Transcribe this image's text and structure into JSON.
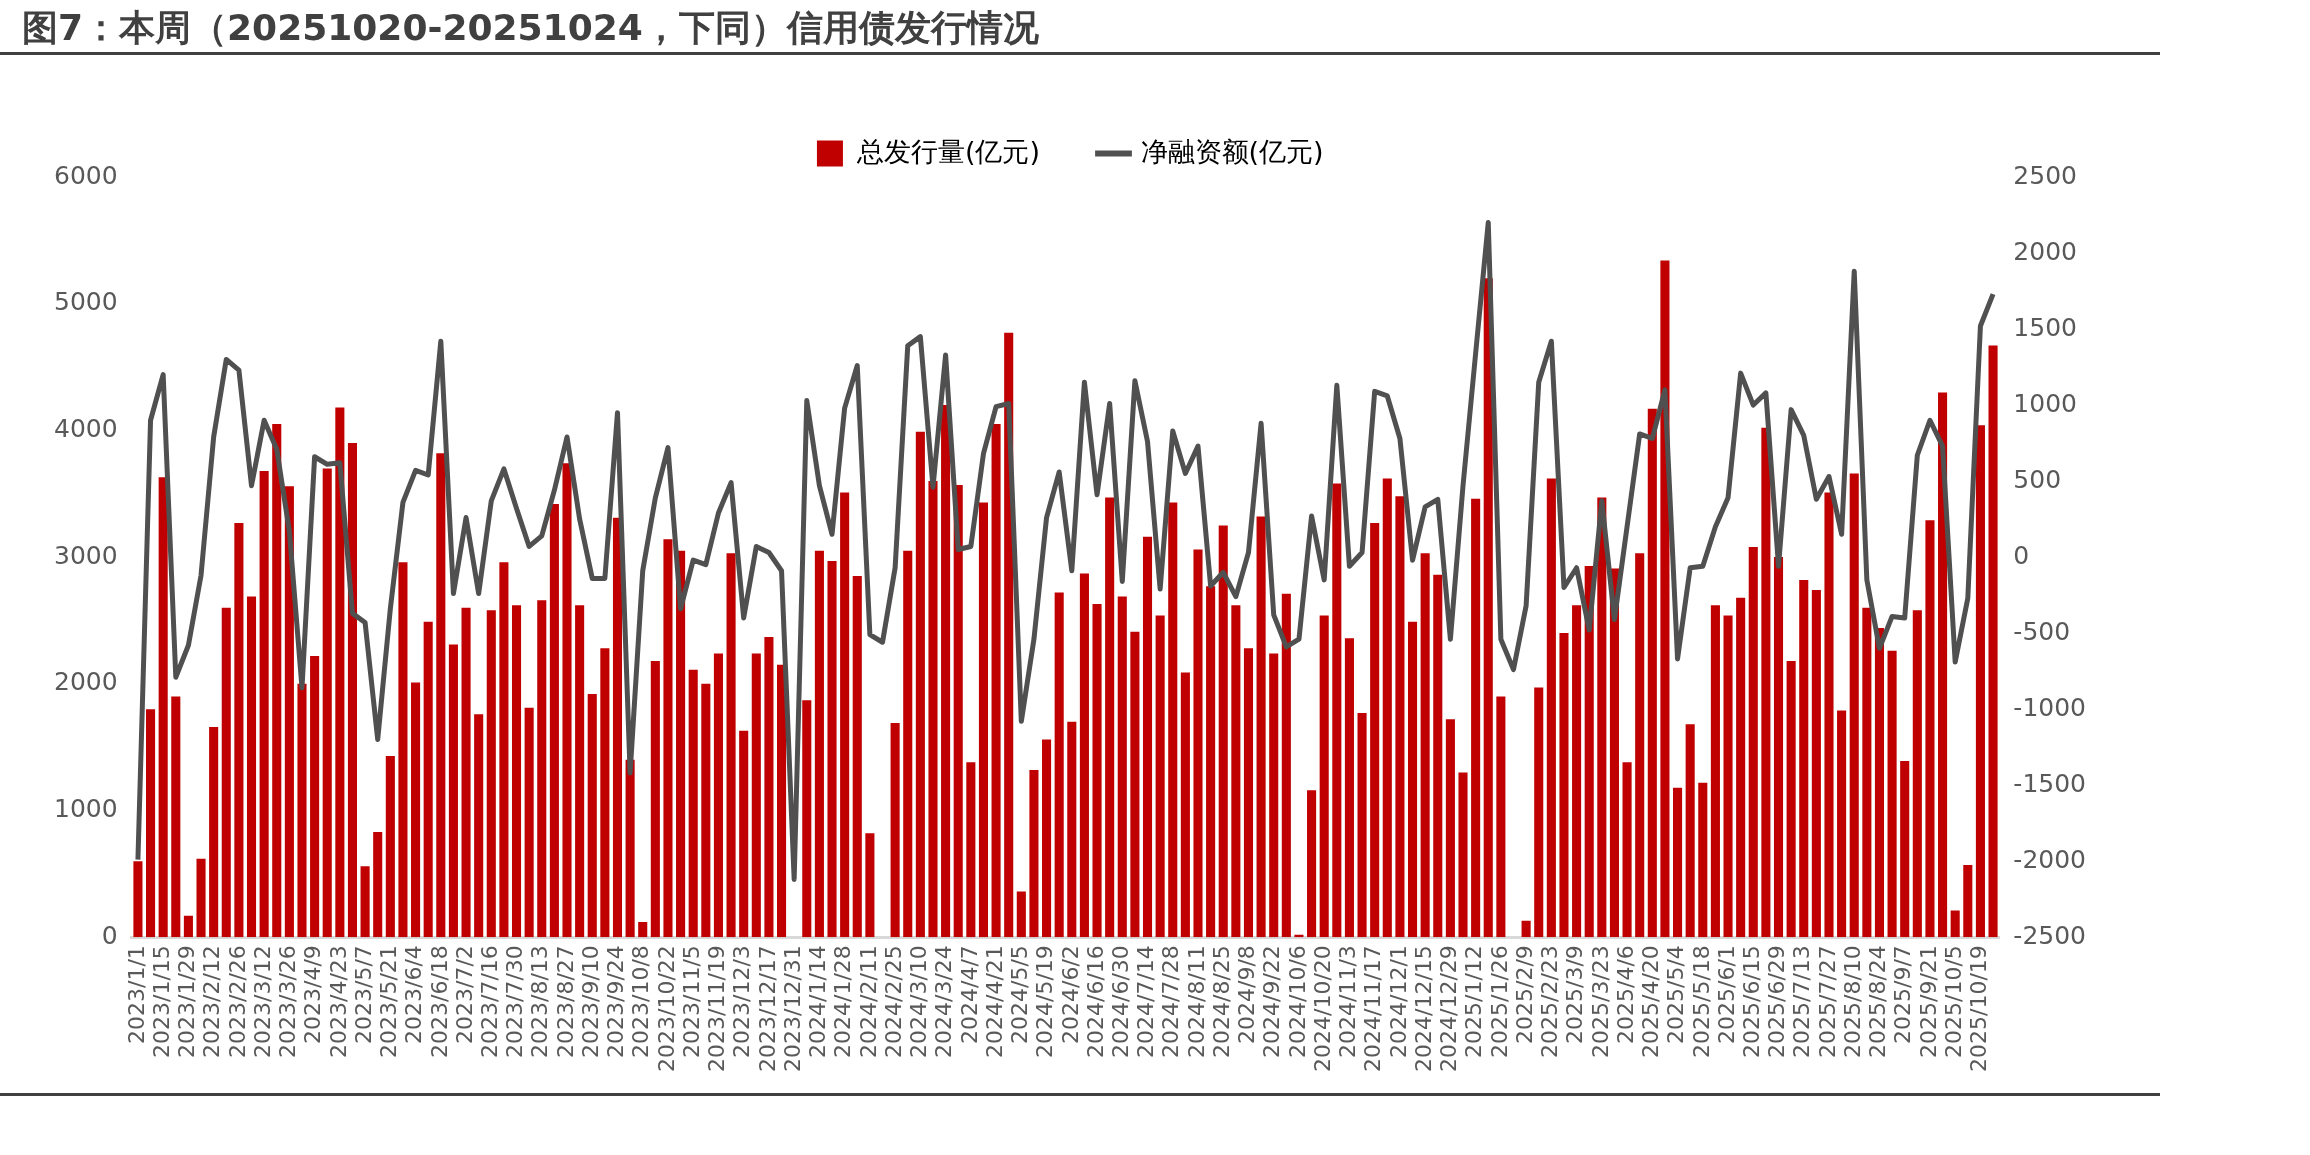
{
  "chart_data": {
    "type": "bar",
    "title": "图7：本周（20251020-20251024，下同）信用债发行情况",
    "categories": [
      "2023/1/1",
      null,
      "2023/1/15",
      null,
      "2023/1/29",
      null,
      "2023/2/12",
      null,
      "2023/2/26",
      null,
      "2023/3/12",
      null,
      "2023/3/26",
      null,
      "2023/4/9",
      null,
      "2023/4/23",
      null,
      "2023/5/7",
      null,
      "2023/5/21",
      null,
      "2023/6/4",
      null,
      "2023/6/18",
      null,
      "2023/7/2",
      null,
      "2023/7/16",
      null,
      "2023/7/30",
      null,
      "2023/8/13",
      null,
      "2023/8/27",
      null,
      "2023/9/10",
      null,
      "2023/9/24",
      null,
      "2023/10/8",
      null,
      "2023/10/22",
      null,
      "2023/11/5",
      null,
      "2023/11/19",
      null,
      "2023/12/3",
      null,
      "2023/12/17",
      null,
      "2023/12/31",
      null,
      "2024/1/14",
      null,
      "2024/1/28",
      null,
      "2024/2/11",
      null,
      "2024/2/25",
      null,
      "2024/3/10",
      null,
      "2024/3/24",
      null,
      "2024/4/7",
      null,
      "2024/4/21",
      null,
      "2024/5/5",
      null,
      "2024/5/19",
      null,
      "2024/6/2",
      null,
      "2024/6/16",
      null,
      "2024/6/30",
      null,
      "2024/7/14",
      null,
      "2024/7/28",
      null,
      "2024/8/11",
      null,
      "2024/8/25",
      null,
      "2024/9/8",
      null,
      "2024/9/22",
      null,
      "2024/10/6",
      null,
      "2024/10/20",
      null,
      "2024/11/3",
      null,
      "2024/11/17",
      null,
      "2024/12/1",
      null,
      "2024/12/15",
      null,
      "2024/12/29",
      null,
      "2025/1/12",
      null,
      "2025/1/26",
      null,
      "2025/2/9",
      null,
      "2025/2/23",
      null,
      "2025/3/9",
      null,
      "2025/3/23",
      null,
      "2025/4/6",
      null,
      "2025/4/20",
      null,
      "2025/5/4",
      null,
      "2025/5/18",
      null,
      "2025/6/1",
      null,
      "2025/6/15",
      null,
      "2025/6/29",
      null,
      "2025/7/13",
      null,
      "2025/7/27",
      null,
      "2025/8/10",
      null,
      "2025/8/24",
      null,
      "2025/9/7",
      null,
      "2025/9/21",
      null,
      "2025/10/5",
      null,
      "2025/10/19",
      null
    ],
    "series": [
      {
        "name": "总发行量(亿元)",
        "color": "#c00000",
        "values": [
          600,
          1800,
          3630,
          1900,
          170,
          620,
          1660,
          2600,
          3270,
          2690,
          3680,
          4050,
          3560,
          2000,
          2220,
          3700,
          4180,
          3900,
          560,
          830,
          1430,
          2960,
          2010,
          2490,
          3820,
          2310,
          2600,
          1760,
          2580,
          2960,
          2620,
          1810,
          2660,
          3420,
          3740,
          2620,
          1920,
          2280,
          3310,
          1400,
          120,
          2180,
          3140,
          3050,
          2110,
          2000,
          2240,
          3030,
          1630,
          2240,
          2370,
          2150,
          null,
          1870,
          3050,
          2970,
          3510,
          2850,
          820,
          0,
          1690,
          3050,
          3990,
          3600,
          4200,
          3570,
          1380,
          3430,
          4050,
          4770,
          360,
          1320,
          1560,
          2720,
          1700,
          2870,
          2630,
          3470,
          2690,
          2410,
          3160,
          2540,
          3430,
          2090,
          3060,
          2770,
          3250,
          2620,
          2280,
          3320,
          2240,
          2710,
          20,
          1160,
          2540,
          3580,
          2360,
          1770,
          3270,
          3620,
          3480,
          2490,
          3030,
          2860,
          1720,
          1300,
          3460,
          5200,
          1900,
          0,
          130,
          1970,
          3620,
          2400,
          2620,
          2930,
          3470,
          2910,
          1380,
          3030,
          4170,
          5340,
          1180,
          1680,
          1220,
          2620,
          2540,
          2680,
          3080,
          4020,
          3000,
          2180,
          2820,
          2740,
          3510,
          1790,
          3660,
          2600,
          2440,
          2260,
          1390,
          2580,
          3290,
          4300,
          210,
          570,
          4040,
          4670
        ]
      },
      {
        "name": "净融资额(亿元)",
        "type": "line",
        "axis": "y2",
        "color": "#505050",
        "values": [
          -1990,
          900,
          1200,
          -790,
          -580,
          -120,
          790,
          1300,
          1230,
          470,
          900,
          710,
          170,
          -860,
          660,
          610,
          620,
          -370,
          -430,
          -1200,
          -340,
          360,
          570,
          540,
          1420,
          -240,
          260,
          -240,
          370,
          580,
          320,
          70,
          140,
          440,
          790,
          250,
          -140,
          -140,
          950,
          -1420,
          -90,
          390,
          720,
          -340,
          -20,
          -50,
          290,
          490,
          -400,
          70,
          30,
          -90,
          -2120,
          1030,
          470,
          150,
          980,
          1260,
          -510,
          -560,
          -70,
          1390,
          1450,
          460,
          1330,
          50,
          70,
          680,
          990,
          1010,
          -1080,
          -540,
          260,
          560,
          -90,
          1150,
          410,
          1010,
          -160,
          1160,
          760,
          -210,
          830,
          550,
          730,
          -190,
          -100,
          -260,
          30,
          880,
          -380,
          -590,
          -540,
          270,
          -150,
          1130,
          -60,
          30,
          1090,
          1060,
          780,
          -20,
          330,
          380,
          -540,
          470,
          1340,
          2200,
          -540,
          -740,
          -320,
          1150,
          1420,
          -200,
          -70,
          -480,
          370,
          -410,
          200,
          810,
          780,
          1100,
          -670,
          -70,
          -60,
          200,
          390,
          1210,
          1000,
          1080,
          -60,
          970,
          800,
          380,
          530,
          150,
          1880,
          -150,
          -600,
          -390,
          -400,
          670,
          900,
          730,
          -690,
          -270,
          1520,
          1730
        ]
      }
    ],
    "ylim": [
      0,
      6000
    ],
    "yticks": [
      0,
      1000,
      2000,
      3000,
      4000,
      5000,
      6000
    ],
    "y2lim": [
      -2500,
      2500
    ],
    "y2ticks": [
      -2500,
      -2000,
      -1500,
      -1000,
      -500,
      0,
      500,
      1000,
      1500,
      2000,
      2500
    ],
    "legend": "top"
  }
}
